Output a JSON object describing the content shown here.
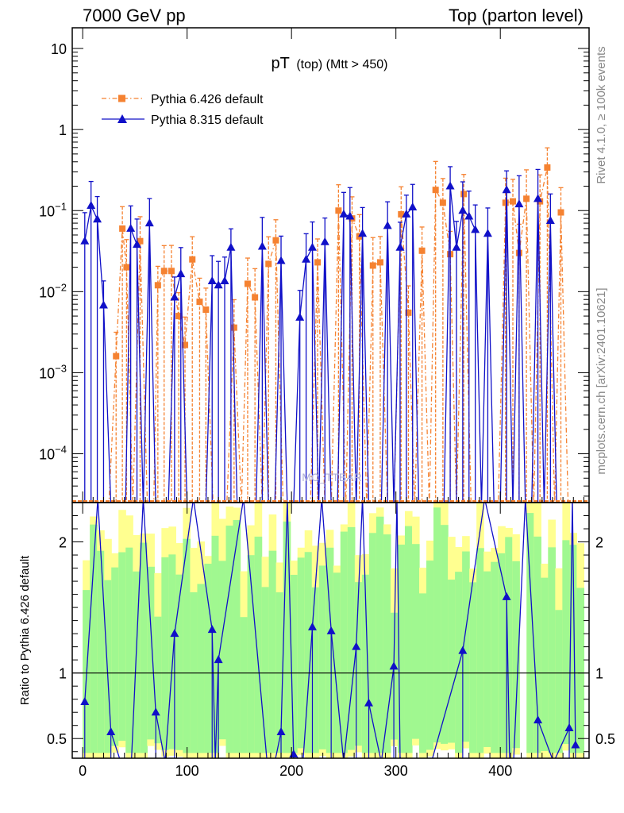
{
  "header": {
    "left_label": "7000 GeV pp",
    "right_label": "Top (parton level)"
  },
  "side_labels": {
    "rivet": "Rivet 4.1.0, ≥ 100k events",
    "mcplots": "mcplots.cern.ch [arXiv:2401.10621]"
  },
  "chart_data": {
    "type": "line",
    "title": "pT (top) (Mtt > 450)",
    "title_main": "pT",
    "title_sub": "(top) (Mtt > 450)",
    "watermark": "MC_TTBAR",
    "xlabel": "",
    "ylabel_ratio": "Ratio to Pythia 6.426 default",
    "xlim": [
      -10,
      485
    ],
    "ylim_main": [
      2.5e-05,
      18
    ],
    "ylim_ratio": [
      0.35,
      2.3
    ],
    "yscale_main": "log",
    "x_ticks": [
      0,
      100,
      200,
      300,
      400
    ],
    "x_tick_labels": [
      "0",
      "100",
      "200",
      "300",
      "400"
    ],
    "y_ticks_main": [
      0.0001,
      0.001,
      0.01,
      0.1,
      1,
      10
    ],
    "y_tick_labels_main": [
      "10^-4",
      "10^-3",
      "10^-2",
      "10^-1",
      "1",
      "10"
    ],
    "y_ticks_ratio": [
      0.5,
      1,
      2
    ],
    "y_tick_labels_ratio": [
      "0.5",
      "1",
      "2"
    ],
    "legend_position": "top-left",
    "series": [
      {
        "name": "Pythia 6.426 default",
        "color": "#f58231",
        "marker": "square",
        "style": "dash-dot",
        "x": [
          5,
          15,
          25,
          32,
          38,
          42,
          48,
          55,
          62,
          68,
          72,
          78,
          85,
          92,
          98,
          105,
          112,
          118,
          125,
          132,
          138,
          145,
          152,
          158,
          165,
          172,
          178,
          185,
          192,
          198,
          205,
          212,
          218,
          225,
          232,
          238,
          245,
          252,
          258,
          265,
          272,
          278,
          285,
          292,
          298,
          305,
          312,
          318,
          325,
          332,
          338,
          345,
          352,
          358,
          365,
          372,
          378,
          385,
          392,
          398,
          405,
          412,
          418,
          425,
          432,
          438,
          445,
          452,
          458,
          465,
          472,
          478
        ],
        "values": [
          0,
          0,
          0,
          0.0016,
          0.06,
          0.02,
          0,
          0.042,
          0,
          0,
          0.012,
          0.018,
          0.018,
          0.005,
          0.0022,
          0.025,
          0.0075,
          0.006,
          0,
          0,
          0,
          0.0036,
          0,
          0.0125,
          0.0085,
          0,
          0.022,
          0.043,
          0,
          0,
          0,
          0,
          0,
          0.023,
          0,
          0,
          0.1,
          0,
          0.08,
          0.048,
          0,
          0.021,
          0.023,
          0,
          0,
          0.09,
          0.0055,
          0,
          0.032,
          0,
          0.18,
          0.125,
          0.029,
          0,
          0.16,
          0,
          0,
          0,
          0,
          0,
          0.125,
          0.13,
          0.03,
          0.14,
          0,
          0.13,
          0.34,
          0,
          0.095,
          0,
          0,
          0
        ]
      },
      {
        "name": "Pythia 8.315 default",
        "color": "#1010c8",
        "marker": "triangle",
        "style": "solid",
        "x": [
          2,
          8,
          14,
          20,
          27,
          34,
          41,
          46,
          52,
          58,
          64,
          70,
          76,
          82,
          88,
          94,
          100,
          106,
          112,
          118,
          124,
          130,
          136,
          142,
          148,
          154,
          160,
          166,
          172,
          178,
          184,
          190,
          196,
          202,
          208,
          214,
          220,
          226,
          232,
          238,
          244,
          250,
          256,
          262,
          268,
          274,
          280,
          286,
          292,
          298,
          304,
          310,
          316,
          322,
          328,
          334,
          340,
          346,
          352,
          358,
          364,
          370,
          376,
          382,
          388,
          394,
          400,
          406,
          412,
          418,
          424,
          430,
          436,
          442,
          448,
          454,
          460,
          466,
          472,
          478
        ],
        "values": [
          0.042,
          0.115,
          0.078,
          0.0068,
          0,
          0,
          0,
          0.06,
          0.038,
          0,
          0.07,
          0,
          0,
          0,
          0.0085,
          0.0165,
          0,
          0,
          0,
          0,
          0.0135,
          0.012,
          0.0135,
          0.035,
          0,
          0,
          0,
          0,
          0.036,
          0,
          0,
          0.024,
          0,
          0,
          0.0048,
          0.025,
          0.035,
          0,
          0.041,
          0,
          0,
          0.09,
          0.085,
          0,
          0.052,
          0,
          0,
          0,
          0.065,
          0,
          0.035,
          0.09,
          0.11,
          0,
          0,
          0,
          0,
          0,
          0.2,
          0.035,
          0.1,
          0.085,
          0.058,
          0,
          0.052,
          0,
          0,
          0.18,
          0,
          0.12,
          0,
          0,
          0.14,
          0,
          0.075,
          0,
          0,
          0,
          0,
          0
        ],
        "ratio_x": [
          2,
          27,
          46,
          70,
          88,
          124,
          130,
          178,
          190,
          202,
          220,
          238,
          262,
          274,
          298,
          304,
          364,
          406,
          412,
          436,
          466,
          472
        ],
        "ratio_values": [
          0.78,
          0.55,
          0.2,
          0.7,
          1.3,
          1.33,
          1.1,
          0.2,
          0.55,
          0.38,
          1.35,
          1.32,
          1.2,
          0.77,
          1.05,
          0.33,
          1.17,
          1.58,
          0.2,
          0.64,
          0.58,
          0.45
        ]
      }
    ],
    "ratio_band": {
      "inner_color": "#a0f890",
      "outer_color": "#ffff90",
      "reference_line": 1
    }
  }
}
